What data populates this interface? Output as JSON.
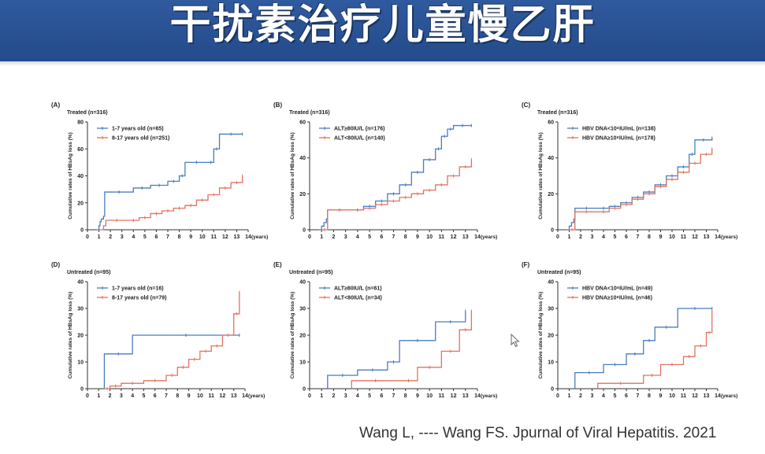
{
  "slide": {
    "title": "干扰素治疗儿童慢乙肝",
    "citation": "Wang L, ---- Wang FS. Jpurnal of Viral Hepatitis. 2021"
  },
  "colors": {
    "header": "#2c5697",
    "blue": "#4a7cc0",
    "red": "#e0735f",
    "cursor": "#666666"
  },
  "chart_data": [
    {
      "type": "line",
      "panel": "(A)",
      "subtitle": "Treated (n=316)",
      "ylabel": "Cumulative rates of HBsAg loss (%)",
      "xlabel": "(years)",
      "xlim": [
        0,
        14
      ],
      "ylim": [
        0,
        80
      ],
      "yticks": [
        0,
        20,
        40,
        60,
        80
      ],
      "xticks": [
        0,
        1,
        2,
        3,
        4,
        5,
        6,
        7,
        8,
        9,
        10,
        11,
        12,
        13,
        14
      ],
      "legend_position": "top-left",
      "series": [
        {
          "name": "1-7 years old",
          "n": "(n=65)",
          "color": "blue",
          "x": [
            0.8,
            1.0,
            1.1,
            1.2,
            1.4,
            1.5,
            4,
            4,
            5.5,
            7,
            8,
            8.5,
            10.5,
            11,
            11.5,
            13.5
          ],
          "y": [
            0,
            3,
            6,
            8,
            10,
            28,
            28,
            31,
            33,
            36,
            40,
            50,
            50,
            60,
            71,
            71
          ]
        },
        {
          "name": "8-17 years old",
          "n": "(n=251)",
          "color": "red",
          "x": [
            1.0,
            1.4,
            1.6,
            3.5,
            4.5,
            5.5,
            6.5,
            7.5,
            8.5,
            9.5,
            10.5,
            11.5,
            12.5,
            13.5
          ],
          "y": [
            0,
            3,
            7,
            7,
            9,
            12,
            14,
            16,
            18,
            22,
            26,
            31,
            35,
            40
          ]
        }
      ]
    },
    {
      "type": "line",
      "panel": "(B)",
      "subtitle": "Treated (n=316)",
      "ylabel": "Cumulative rates of HBsAg loss (%)",
      "xlabel": "(years)",
      "xlim": [
        0,
        14
      ],
      "ylim": [
        0,
        60
      ],
      "yticks": [
        0,
        20,
        40,
        60
      ],
      "xticks": [
        0,
        1,
        2,
        3,
        4,
        5,
        6,
        7,
        8,
        9,
        10,
        11,
        12,
        13,
        14
      ],
      "legend_position": "top-left",
      "series": [
        {
          "name": "ALT≥80IU/L",
          "n": "(n=176)",
          "color": "blue",
          "x": [
            0.8,
            1.0,
            1.2,
            1.4,
            1.5,
            3.5,
            4.5,
            5.5,
            6.5,
            7.5,
            8.5,
            9.5,
            10.5,
            11.0,
            11.5,
            12,
            13.5
          ],
          "y": [
            0,
            2,
            4,
            6,
            11,
            11,
            13,
            16,
            20,
            25,
            32,
            39,
            45,
            52,
            56,
            58,
            58
          ]
        },
        {
          "name": "ALT<80IU/L",
          "n": "(n=140)",
          "color": "red",
          "x": [
            1.0,
            1.5,
            3.5,
            4.5,
            5.5,
            6.5,
            7.5,
            8.5,
            9.5,
            10.5,
            11.5,
            12.5,
            13.5
          ],
          "y": [
            0,
            11,
            11,
            12,
            14,
            16,
            18,
            20,
            22,
            25,
            30,
            35,
            39
          ]
        }
      ]
    },
    {
      "type": "line",
      "panel": "(C)",
      "subtitle": "Treated (n=316)",
      "ylabel": "Cumulative rates of HBsAg loss (%)",
      "xlabel": "(years)",
      "xlim": [
        0,
        14
      ],
      "ylim": [
        0,
        60
      ],
      "yticks": [
        0,
        20,
        40,
        60
      ],
      "xticks": [
        0,
        1,
        2,
        3,
        4,
        5,
        6,
        7,
        8,
        9,
        10,
        11,
        12,
        13,
        14
      ],
      "legend_position": "top-left",
      "series": [
        {
          "name": "HBV DNA<10⁸IU/mL",
          "n": "(n=138)",
          "color": "blue",
          "x": [
            0.8,
            1.0,
            1.2,
            1.4,
            1.5,
            3.5,
            4.5,
            5.5,
            6.5,
            7.5,
            8.5,
            9.5,
            10.5,
            11.5,
            12,
            13.5
          ],
          "y": [
            0,
            2,
            4,
            6,
            12,
            12,
            13,
            15,
            18,
            21,
            25,
            30,
            35,
            42,
            50,
            51
          ]
        },
        {
          "name": "HBV DNA≥10⁸IU/mL",
          "n": "(n=178)",
          "color": "red",
          "x": [
            1.0,
            1.5,
            3.5,
            4.5,
            5.5,
            6.5,
            7.5,
            8.5,
            9.5,
            10.5,
            11.5,
            12.5,
            13.5
          ],
          "y": [
            0,
            10,
            10,
            12,
            14,
            17,
            20,
            24,
            28,
            32,
            37,
            42,
            45
          ]
        }
      ]
    },
    {
      "type": "line",
      "panel": "(D)",
      "subtitle": "Untreated (n=95)",
      "ylabel": "Cumulative rates of HBsAg loss (%)",
      "xlabel": "(years)",
      "xlim": [
        0,
        14
      ],
      "ylim": [
        0,
        40
      ],
      "yticks": [
        0,
        10,
        20,
        30,
        40
      ],
      "xticks": [
        0,
        1,
        2,
        3,
        4,
        5,
        6,
        7,
        8,
        9,
        10,
        11,
        12,
        13,
        14
      ],
      "legend_position": "top-left",
      "series": [
        {
          "name": "1-7 years old",
          "n": "(n=16)",
          "color": "blue",
          "x": [
            1.5,
            1.5,
            4.0,
            13.5
          ],
          "y": [
            0,
            13,
            20,
            20
          ]
        },
        {
          "name": "8-17 years old",
          "n": "(n=79)",
          "color": "red",
          "x": [
            1.5,
            2.0,
            3.0,
            5.0,
            7.0,
            8.0,
            9.0,
            10.0,
            11.0,
            12.0,
            13.0,
            13.5
          ],
          "y": [
            0,
            1,
            2,
            3,
            5,
            8,
            11,
            14,
            16,
            20,
            28,
            36
          ]
        }
      ]
    },
    {
      "type": "line",
      "panel": "(E)",
      "subtitle": "Untreated (n=95)",
      "ylabel": "Cumulative rates of HBsAg loss (%)",
      "xlabel": "(years)",
      "xlim": [
        0,
        14
      ],
      "ylim": [
        0,
        40
      ],
      "yticks": [
        0,
        10,
        20,
        30,
        40
      ],
      "xticks": [
        0,
        1,
        2,
        3,
        4,
        5,
        6,
        7,
        8,
        9,
        10,
        11,
        12,
        13,
        14
      ],
      "legend_position": "top-left",
      "series": [
        {
          "name": "ALT≥80IU/L",
          "n": "(n=61)",
          "color": "blue",
          "x": [
            1.5,
            1.5,
            4.0,
            6.5,
            7.5,
            10.5,
            13.0
          ],
          "y": [
            0,
            5,
            7,
            10,
            18,
            25,
            29
          ]
        },
        {
          "name": "ALT<80IU/L",
          "n": "(n=34)",
          "color": "red",
          "x": [
            3.5,
            3.5,
            7.5,
            9.0,
            11.0,
            12.5,
            13.5
          ],
          "y": [
            0,
            3,
            3,
            8,
            14,
            22,
            29
          ]
        }
      ]
    },
    {
      "type": "line",
      "panel": "(F)",
      "subtitle": "Untreated (n=95)",
      "ylabel": "Cumulative rates of HBsAg loss (%)",
      "xlabel": "(years)",
      "xlim": [
        0,
        14
      ],
      "ylim": [
        0,
        40
      ],
      "yticks": [
        0,
        10,
        20,
        30,
        40
      ],
      "xticks": [
        0,
        1,
        2,
        3,
        4,
        5,
        6,
        7,
        8,
        9,
        10,
        11,
        12,
        13,
        14
      ],
      "legend_position": "top-left",
      "series": [
        {
          "name": "HBV DNA<10⁸IU/mL",
          "n": "(n=49)",
          "color": "blue",
          "x": [
            1.5,
            1.5,
            4.0,
            6.0,
            7.5,
            8.5,
            10.5,
            13.5
          ],
          "y": [
            0,
            6,
            9,
            13,
            18,
            23,
            30,
            30
          ]
        },
        {
          "name": "HBV DNA≥10⁸IU/mL",
          "n": "(n=46)",
          "color": "red",
          "x": [
            3.5,
            3.5,
            7.5,
            9.0,
            11.0,
            12.0,
            13.0,
            13.5
          ],
          "y": [
            0,
            2,
            5,
            9,
            12,
            16,
            21,
            29
          ]
        }
      ]
    }
  ]
}
